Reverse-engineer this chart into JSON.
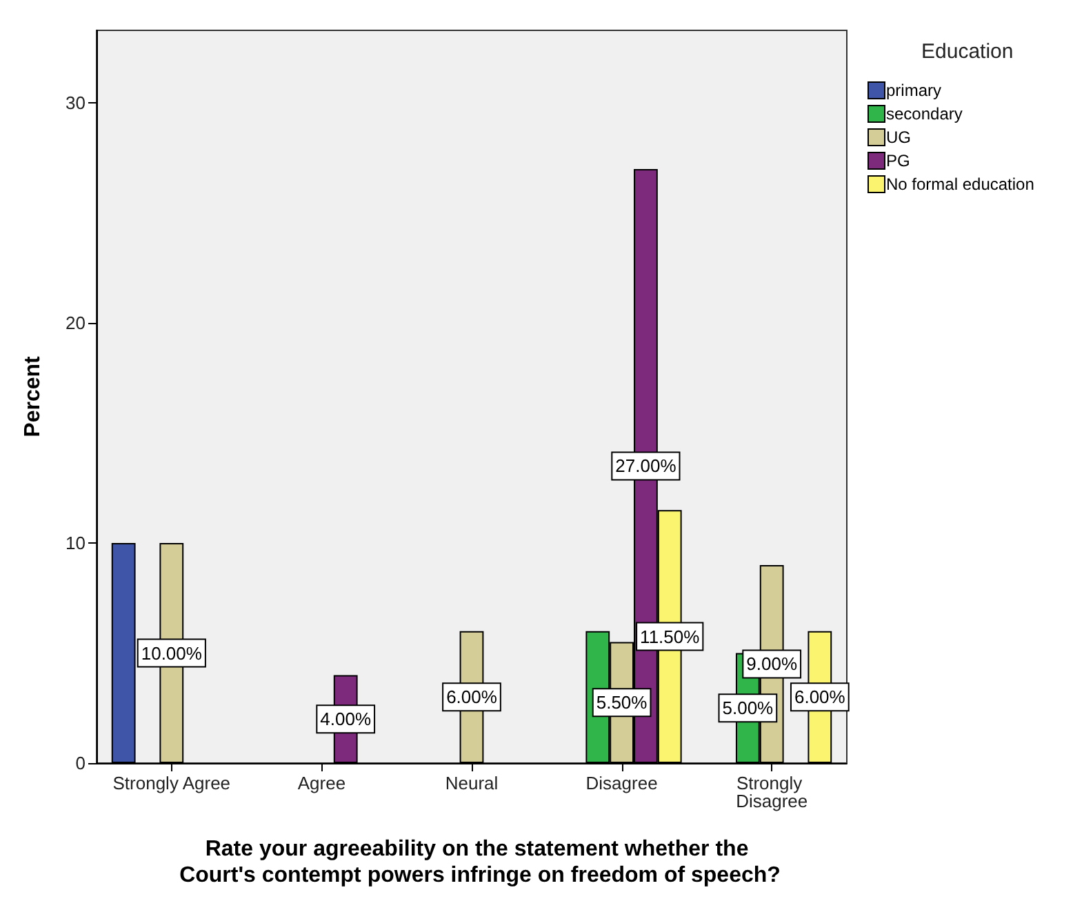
{
  "chart_data": {
    "type": "bar",
    "xlabel": "Rate your agreeability on the statement whether the Court's contempt powers infringe on freedom of speech?",
    "ylabel": "Percent",
    "legend_title": "Education",
    "categories": [
      "Strongly Agree",
      "Agree",
      "Neural",
      "Disagree",
      "Strongly Disagree"
    ],
    "series": [
      {
        "name": "primary",
        "color": "#3f55a7",
        "values": [
          10,
          null,
          null,
          null,
          null
        ],
        "value_labels": [
          null,
          null,
          null,
          null,
          null
        ]
      },
      {
        "name": "secondary",
        "color": "#30b54a",
        "values": [
          null,
          null,
          null,
          6,
          5
        ],
        "value_labels": [
          null,
          null,
          null,
          null,
          "5.00%"
        ]
      },
      {
        "name": "UG",
        "color": "#d4cd98",
        "values": [
          10,
          null,
          6,
          5.5,
          9
        ],
        "value_labels": [
          "10.00%",
          null,
          "6.00%",
          "5.50%",
          "9.00%"
        ]
      },
      {
        "name": "PG",
        "color": "#7d2a7d",
        "values": [
          null,
          4,
          null,
          27,
          null
        ],
        "value_labels": [
          null,
          "4.00%",
          null,
          "27.00%",
          null
        ]
      },
      {
        "name": "No formal education",
        "color": "#fbf46e",
        "values": [
          null,
          null,
          null,
          11.5,
          6
        ],
        "value_labels": [
          null,
          null,
          null,
          "11.50%",
          "6.00%"
        ]
      }
    ],
    "ylim": [
      0,
      33.3
    ],
    "yticks": [
      0,
      10,
      20,
      30
    ],
    "grid": false,
    "legend": "top right"
  }
}
